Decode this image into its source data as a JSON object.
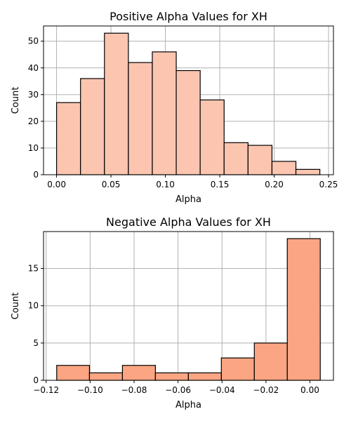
{
  "chart_data": [
    {
      "type": "bar",
      "title": "Positive Alpha Values for XH",
      "xlabel": "Alpha",
      "ylabel": "Count",
      "color": "#fcc5b0",
      "grid": true,
      "xlim": [
        -0.012,
        0.2545
      ],
      "ylim": [
        0,
        55.7
      ],
      "xticks": [
        "0.00",
        "0.05",
        "0.10",
        "0.15",
        "0.20",
        "0.25"
      ],
      "yticks": [
        "0",
        "10",
        "20",
        "30",
        "40",
        "50"
      ],
      "bins": [
        {
          "x0": 0.0,
          "x1": 0.022,
          "count": 27
        },
        {
          "x0": 0.022,
          "x1": 0.044,
          "count": 36
        },
        {
          "x0": 0.044,
          "x1": 0.066,
          "count": 53
        },
        {
          "x0": 0.066,
          "x1": 0.088,
          "count": 42
        },
        {
          "x0": 0.088,
          "x1": 0.11,
          "count": 46
        },
        {
          "x0": 0.11,
          "x1": 0.132,
          "count": 39
        },
        {
          "x0": 0.132,
          "x1": 0.154,
          "count": 28
        },
        {
          "x0": 0.154,
          "x1": 0.176,
          "count": 12
        },
        {
          "x0": 0.176,
          "x1": 0.198,
          "count": 11
        },
        {
          "x0": 0.198,
          "x1": 0.22,
          "count": 5
        },
        {
          "x0": 0.22,
          "x1": 0.242,
          "count": 2
        }
      ]
    },
    {
      "type": "bar",
      "title": "Negative Alpha Values for XH",
      "xlabel": "Alpha",
      "ylabel": "Count",
      "color": "#fca583",
      "grid": true,
      "xlim": [
        -0.1212,
        0.0107
      ],
      "ylim": [
        0,
        19.95
      ],
      "xticks": [
        "−0.12",
        "−0.10",
        "−0.08",
        "−0.06",
        "−0.04",
        "−0.02",
        "0.00"
      ],
      "yticks": [
        "0",
        "5",
        "10",
        "15"
      ],
      "bins": [
        {
          "x0": -0.1152,
          "x1": -0.1003,
          "count": 2
        },
        {
          "x0": -0.1003,
          "x1": -0.0853,
          "count": 1
        },
        {
          "x0": -0.0853,
          "x1": -0.0703,
          "count": 2
        },
        {
          "x0": -0.0703,
          "x1": -0.0553,
          "count": 1
        },
        {
          "x0": -0.0553,
          "x1": -0.0403,
          "count": 1
        },
        {
          "x0": -0.0403,
          "x1": -0.0253,
          "count": 3
        },
        {
          "x0": -0.0253,
          "x1": -0.0103,
          "count": 5
        },
        {
          "x0": -0.0103,
          "x1": 0.0047,
          "count": 19
        }
      ]
    }
  ]
}
